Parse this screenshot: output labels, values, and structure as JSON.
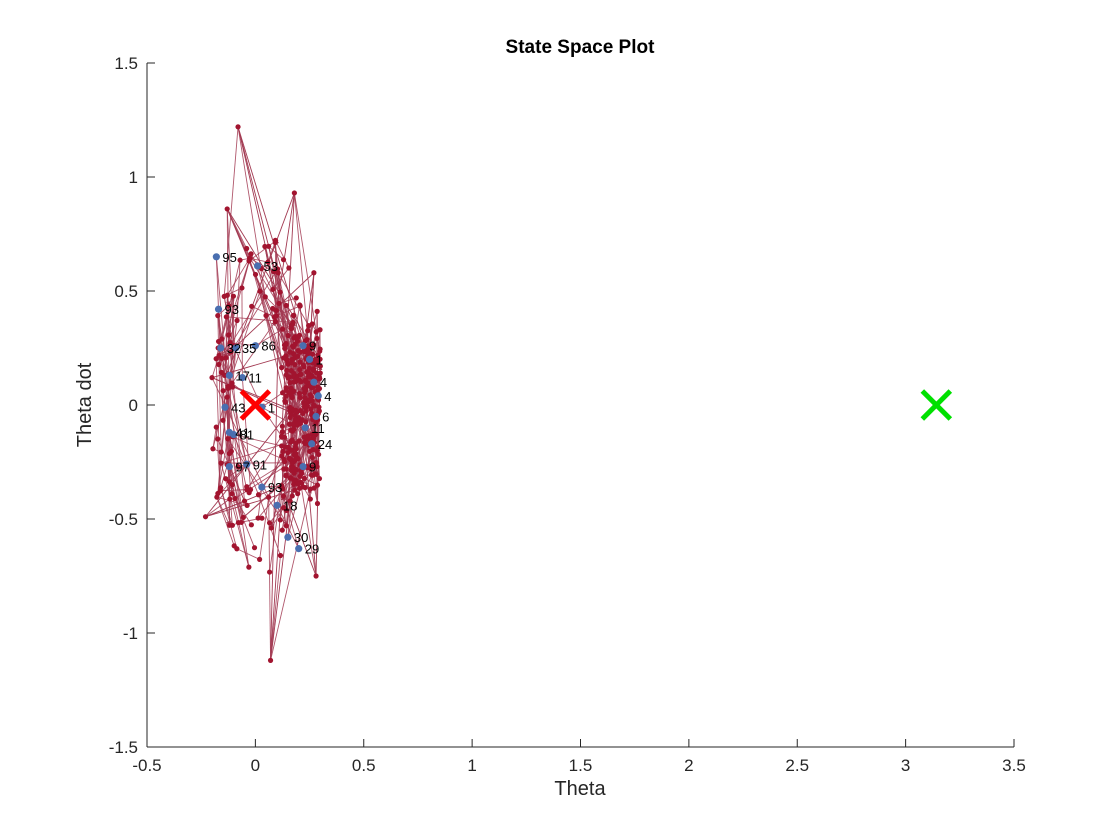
{
  "chart_data": {
    "type": "scatter",
    "title": "State Space Plot",
    "xlabel": "Theta",
    "ylabel": "Theta dot",
    "xlim": [
      -0.5,
      3.5
    ],
    "ylim": [
      -1.5,
      1.5
    ],
    "xticks": [
      -0.5,
      0,
      0.5,
      1,
      1.5,
      2,
      2.5,
      3,
      3.5
    ],
    "xtick_labels": [
      "-0.5",
      "0",
      "0.5",
      "1",
      "1.5",
      "2",
      "2.5",
      "3",
      "3.5"
    ],
    "yticks": [
      -1.5,
      -1,
      -0.5,
      0,
      0.5,
      1,
      1.5
    ],
    "ytick_labels": [
      "-1.5",
      "-1",
      "-0.5",
      "0",
      "0.5",
      "1",
      "1.5"
    ],
    "grid": false,
    "legend": "none",
    "colors": {
      "edge": "#a23a52",
      "node": "#a2142f",
      "labeled_node": "#4a6fb0",
      "start_marker": "#ff0000",
      "goal_marker": "#00e000",
      "axis": "#262626"
    },
    "start_marker": {
      "label_icon": "x-marker",
      "x": 0.0,
      "y": 0.0
    },
    "goal_marker": {
      "label_icon": "x-marker",
      "x": 3.1416,
      "y": 0.0
    },
    "outlier_nodes": [
      {
        "x": -0.08,
        "y": 1.22
      },
      {
        "x": 0.18,
        "y": 0.93
      },
      {
        "x": -0.13,
        "y": 0.86
      },
      {
        "x": 0.07,
        "y": -1.12
      },
      {
        "x": -0.23,
        "y": -0.49
      },
      {
        "x": 0.28,
        "y": -0.75
      },
      {
        "x": -0.2,
        "y": 0.12
      },
      {
        "x": 0.27,
        "y": 0.58
      }
    ],
    "labeled_nodes": [
      {
        "label": "95",
        "x": -0.18,
        "y": 0.65
      },
      {
        "label": "53",
        "x": 0.01,
        "y": 0.61
      },
      {
        "label": "93",
        "x": -0.17,
        "y": 0.42
      },
      {
        "label": "32",
        "x": -0.16,
        "y": 0.25
      },
      {
        "label": "35",
        "x": -0.09,
        "y": 0.25
      },
      {
        "label": "86",
        "x": 0.0,
        "y": 0.26
      },
      {
        "label": "9",
        "x": 0.22,
        "y": 0.26
      },
      {
        "label": "17",
        "x": -0.12,
        "y": 0.13
      },
      {
        "label": "11",
        "x": -0.06,
        "y": 0.12
      },
      {
        "label": "1",
        "x": 0.25,
        "y": 0.2
      },
      {
        "label": "4",
        "x": 0.27,
        "y": 0.1
      },
      {
        "label": "4",
        "x": 0.29,
        "y": 0.04
      },
      {
        "label": "6",
        "x": 0.28,
        "y": -0.05
      },
      {
        "label": "43",
        "x": -0.14,
        "y": -0.01
      },
      {
        "label": "1",
        "x": 0.03,
        "y": -0.01
      },
      {
        "label": "11",
        "x": 0.23,
        "y": -0.1
      },
      {
        "label": "41",
        "x": -0.12,
        "y": -0.12
      },
      {
        "label": "81",
        "x": -0.1,
        "y": -0.13
      },
      {
        "label": "24",
        "x": 0.26,
        "y": -0.17
      },
      {
        "label": "97",
        "x": -0.12,
        "y": -0.27
      },
      {
        "label": "91",
        "x": -0.04,
        "y": -0.26
      },
      {
        "label": "9",
        "x": 0.22,
        "y": -0.27
      },
      {
        "label": "93",
        "x": 0.03,
        "y": -0.36
      },
      {
        "label": "18",
        "x": 0.1,
        "y": -0.44
      },
      {
        "label": "30",
        "x": 0.15,
        "y": -0.58
      },
      {
        "label": "29",
        "x": 0.2,
        "y": -0.63
      }
    ]
  }
}
